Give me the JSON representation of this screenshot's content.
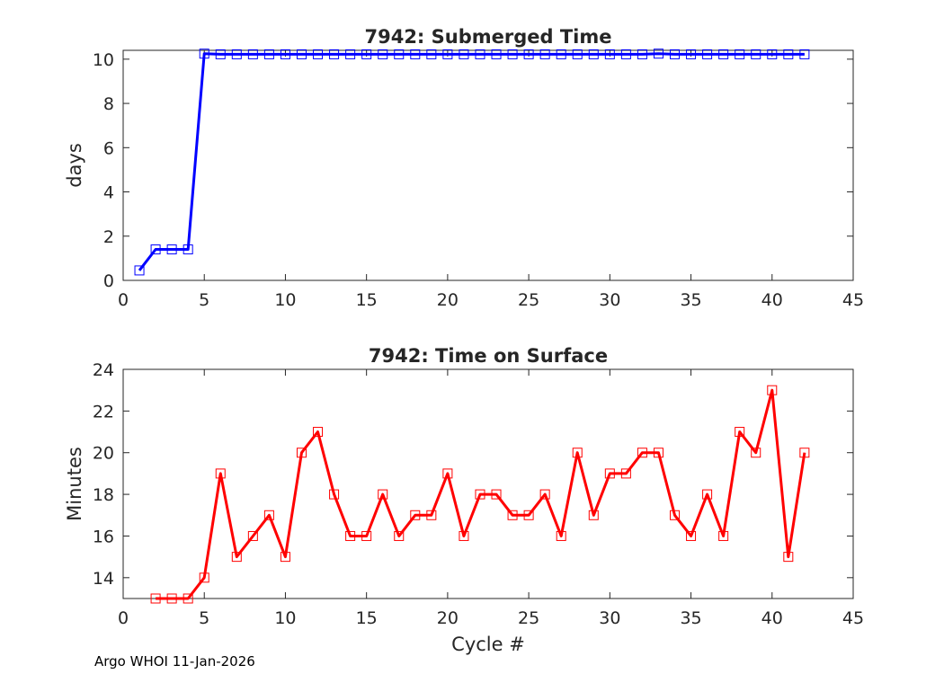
{
  "footer": "Argo WHOI 11-Jan-2026",
  "chart_data": [
    {
      "type": "line",
      "title": "7942: Submerged Time",
      "xlabel": "",
      "ylabel": "days",
      "xlim": [
        0,
        45
      ],
      "ylim": [
        0,
        10.4
      ],
      "xticks": [
        0,
        5,
        10,
        15,
        20,
        25,
        30,
        35,
        40,
        45
      ],
      "yticks": [
        0,
        2,
        4,
        6,
        8,
        10
      ],
      "grid": true,
      "color": "#0000ff",
      "marker": "square",
      "x": [
        1,
        2,
        3,
        4,
        5,
        6,
        7,
        8,
        9,
        10,
        11,
        12,
        13,
        14,
        15,
        16,
        17,
        18,
        19,
        20,
        21,
        22,
        23,
        24,
        25,
        26,
        27,
        28,
        29,
        30,
        31,
        32,
        33,
        34,
        35,
        36,
        37,
        38,
        39,
        40,
        41,
        42
      ],
      "y": [
        0.45,
        1.4,
        1.4,
        1.4,
        10.25,
        10.22,
        10.22,
        10.22,
        10.22,
        10.22,
        10.22,
        10.22,
        10.22,
        10.22,
        10.22,
        10.22,
        10.22,
        10.22,
        10.22,
        10.22,
        10.22,
        10.22,
        10.22,
        10.22,
        10.22,
        10.22,
        10.22,
        10.22,
        10.22,
        10.22,
        10.22,
        10.22,
        10.25,
        10.22,
        10.22,
        10.22,
        10.22,
        10.22,
        10.22,
        10.22,
        10.22,
        10.22
      ]
    },
    {
      "type": "line",
      "title": "7942: Time on Surface",
      "xlabel": "Cycle #",
      "ylabel": "Minutes",
      "xlim": [
        0,
        45
      ],
      "ylim": [
        13,
        24
      ],
      "xticks": [
        0,
        5,
        10,
        15,
        20,
        25,
        30,
        35,
        40,
        45
      ],
      "yticks": [
        14,
        16,
        18,
        20,
        22,
        24
      ],
      "grid": true,
      "color": "#ff0000",
      "marker": "square",
      "x": [
        2,
        3,
        4,
        5,
        6,
        7,
        8,
        9,
        10,
        11,
        12,
        13,
        14,
        15,
        16,
        17,
        18,
        19,
        20,
        21,
        22,
        23,
        24,
        25,
        26,
        27,
        28,
        29,
        30,
        31,
        32,
        33,
        34,
        35,
        36,
        37,
        38,
        39,
        40,
        41,
        42
      ],
      "y": [
        13,
        13,
        13,
        14,
        19,
        15,
        16,
        17,
        15,
        20,
        21,
        18,
        16,
        16,
        18,
        16,
        17,
        17,
        19,
        16,
        18,
        18,
        17,
        17,
        18,
        16,
        20,
        17,
        19,
        19,
        20,
        20,
        17,
        16,
        18,
        16,
        21,
        20,
        23,
        15,
        20
      ]
    }
  ]
}
